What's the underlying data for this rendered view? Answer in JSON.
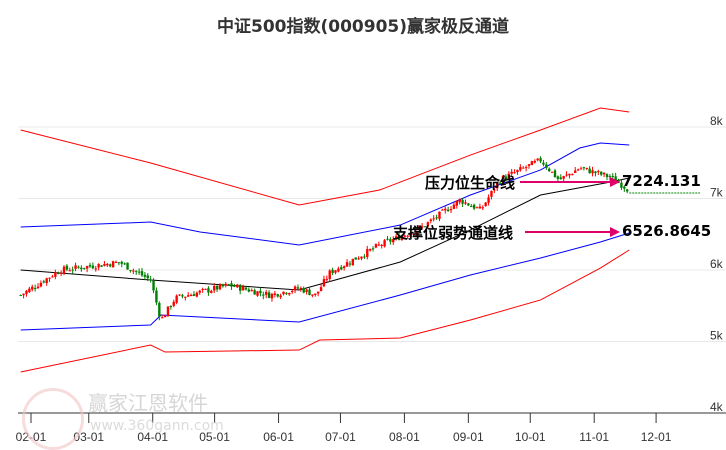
{
  "chart_data": {
    "type": "candlestick",
    "title": "中证500指数(000905)赢家极反通道",
    "y_ticks": [
      {
        "v": 8000,
        "label": "8k"
      },
      {
        "v": 7000,
        "label": "7k"
      },
      {
        "v": 6000,
        "label": "6k"
      },
      {
        "v": 5000,
        "label": "5k"
      },
      {
        "v": 4000,
        "label": "4k"
      }
    ],
    "ylim": [
      4000,
      8300
    ],
    "x_ticks": [
      {
        "day": 31,
        "label": "02-01"
      },
      {
        "day": 59,
        "label": "03-01"
      },
      {
        "day": 90,
        "label": "04-01"
      },
      {
        "day": 120,
        "label": "05-01"
      },
      {
        "day": 151,
        "label": "06-01"
      },
      {
        "day": 181,
        "label": "07-01"
      },
      {
        "day": 212,
        "label": "08-01"
      },
      {
        "day": 243,
        "label": "09-01"
      },
      {
        "day": 273,
        "label": "10-01"
      },
      {
        "day": 304,
        "label": "11-01"
      },
      {
        "day": 334,
        "label": "12-01"
      }
    ],
    "price_path": [
      [
        26,
        5550
      ],
      [
        45,
        5900
      ],
      [
        74,
        6010
      ],
      [
        89,
        5760
      ],
      [
        94,
        5200
      ],
      [
        101,
        5510
      ],
      [
        127,
        5690
      ],
      [
        147,
        5550
      ],
      [
        161,
        5650
      ],
      [
        169,
        5550
      ],
      [
        176,
        5870
      ],
      [
        200,
        6250
      ],
      [
        220,
        6490
      ],
      [
        239,
        6880
      ],
      [
        249,
        6740
      ],
      [
        258,
        7160
      ],
      [
        278,
        7440
      ],
      [
        287,
        7160
      ],
      [
        297,
        7330
      ],
      [
        312,
        7200
      ],
      [
        321,
        7020
      ]
    ],
    "bands": [
      {
        "name": "upper-red",
        "color": "#ff0000",
        "points": [
          [
            26,
            7860
          ],
          [
            89,
            7399
          ],
          [
            161,
            6811
          ],
          [
            200,
            7021
          ],
          [
            244,
            7510
          ],
          [
            278,
            7860
          ],
          [
            307,
            8168
          ],
          [
            321,
            8112
          ]
        ]
      },
      {
        "name": "upper-blue",
        "color": "#0000ff",
        "points": [
          [
            26,
            6503
          ],
          [
            89,
            6573
          ],
          [
            113,
            6434
          ],
          [
            161,
            6252
          ],
          [
            210,
            6531
          ],
          [
            244,
            6951
          ],
          [
            278,
            7301
          ],
          [
            297,
            7608
          ],
          [
            307,
            7678
          ],
          [
            321,
            7650
          ]
        ]
      },
      {
        "name": "middle-black",
        "color": "#000000",
        "points": [
          [
            26,
            5902
          ],
          [
            89,
            5762
          ],
          [
            161,
            5622
          ],
          [
            210,
            6014
          ],
          [
            244,
            6462
          ],
          [
            278,
            6951
          ],
          [
            312,
            7133
          ],
          [
            321,
            7189
          ]
        ]
      },
      {
        "name": "lower-blue",
        "color": "#0000ff",
        "points": [
          [
            26,
            5063
          ],
          [
            89,
            5133
          ],
          [
            94,
            5273
          ],
          [
            161,
            5175
          ],
          [
            210,
            5552
          ],
          [
            244,
            5832
          ],
          [
            278,
            6070
          ],
          [
            307,
            6294
          ],
          [
            321,
            6420
          ]
        ]
      },
      {
        "name": "lower-red",
        "color": "#ff0000",
        "points": [
          [
            26,
            4476
          ],
          [
            89,
            4853
          ],
          [
            96,
            4755
          ],
          [
            161,
            4783
          ],
          [
            171,
            4923
          ],
          [
            210,
            4951
          ],
          [
            244,
            5203
          ],
          [
            278,
            5483
          ],
          [
            307,
            5930
          ],
          [
            321,
            6182
          ]
        ]
      }
    ],
    "annotations": [
      {
        "label": "压力位生命线",
        "value": "7224.131",
        "v": 7224.131
      },
      {
        "label": "支撑位弱势通道线",
        "value": "6526.8645",
        "v": 6526.8645
      }
    ],
    "up_color": "#ff0000",
    "down_color": "#008000"
  },
  "watermark": {
    "name": "赢家江恩软件",
    "url": "www.360gann.com",
    "seal": "江赢恩家"
  }
}
